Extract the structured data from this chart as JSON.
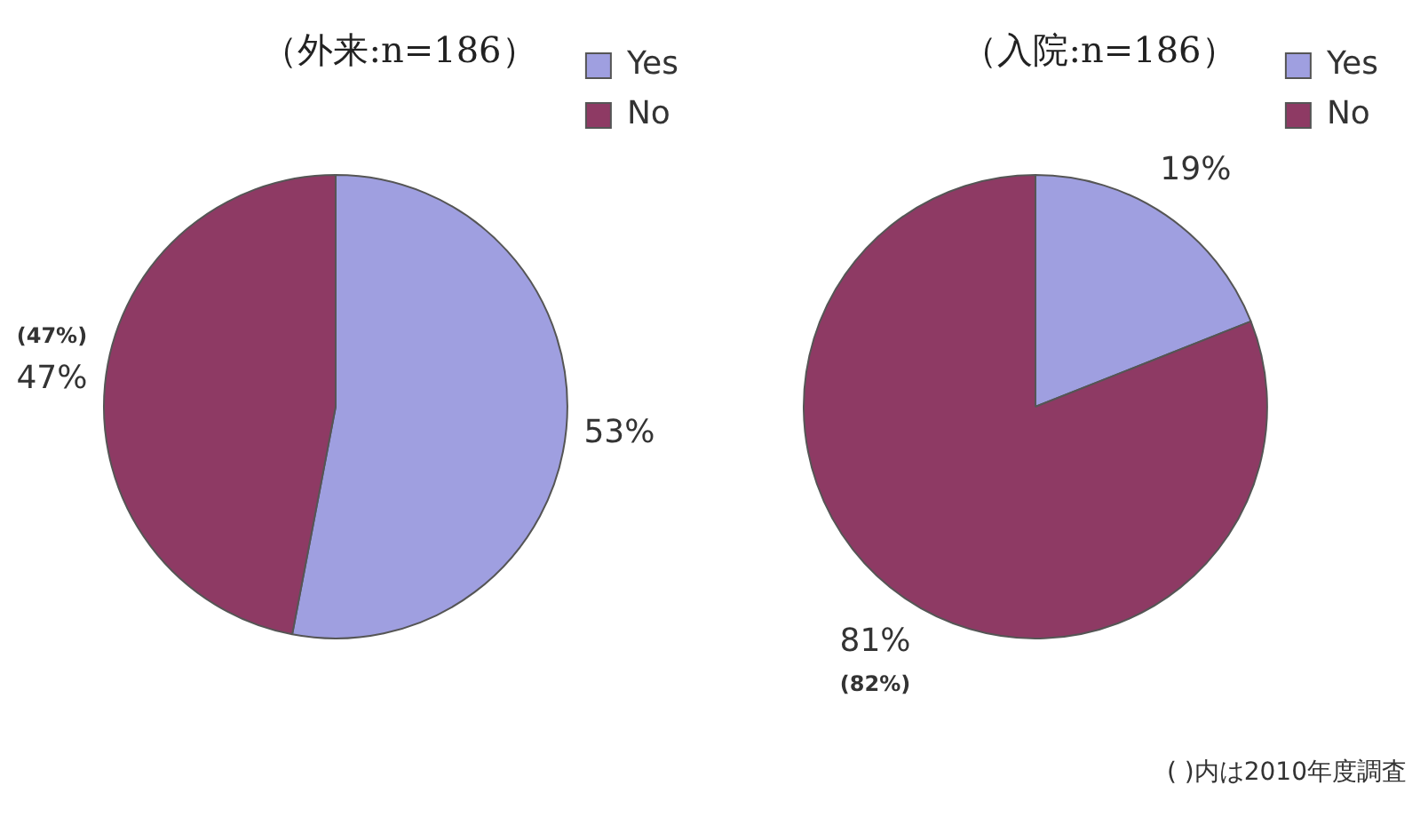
{
  "chart_data": [
    {
      "type": "pie",
      "title": "（外来:n=186）",
      "categories": [
        "Yes",
        "No"
      ],
      "values": [
        53,
        47
      ],
      "colors": [
        "#9f9fe0",
        "#8e3a64"
      ],
      "value_labels": [
        "53%",
        "47%"
      ],
      "legend": "right",
      "annotations": [
        {
          "text": "(47%)",
          "x": "No"
        }
      ]
    },
    {
      "type": "pie",
      "title": "（入院:n=186）",
      "categories": [
        "Yes",
        "No"
      ],
      "values": [
        19,
        81
      ],
      "colors": [
        "#9f9fe0",
        "#8e3a64"
      ],
      "value_labels": [
        "19%",
        "81%"
      ],
      "legend": "right",
      "annotations": [
        {
          "text": "(82%)",
          "x": "No"
        },
        "( )内は2010年度調査"
      ]
    }
  ]
}
